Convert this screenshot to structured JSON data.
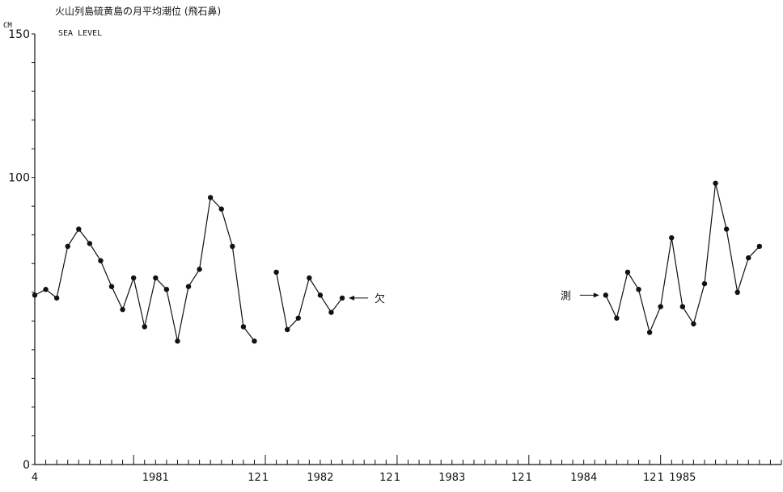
{
  "chart_data": {
    "type": "line",
    "title": "火山列島硫黄島の月平均潮位 (飛石鼻)",
    "subtitle": "SEA LEVEL",
    "ylabel": "CM",
    "ylim": [
      0,
      150
    ],
    "yticks": [
      0,
      100,
      150
    ],
    "xlabel": "",
    "x_range": [
      "1980-04",
      "1985-12"
    ],
    "x_tick_labels": [
      {
        "month": "1980-04",
        "label": "4"
      },
      {
        "month": "1981-03",
        "label": "1981"
      },
      {
        "month": "1981-12",
        "label": "12"
      },
      {
        "month": "1982-01",
        "label": "1"
      },
      {
        "month": "1982-06",
        "label": "1982"
      },
      {
        "month": "1982-12",
        "label": "12"
      },
      {
        "month": "1983-01",
        "label": "1"
      },
      {
        "month": "1983-06",
        "label": "1983"
      },
      {
        "month": "1983-12",
        "label": "12"
      },
      {
        "month": "1984-01",
        "label": "1"
      },
      {
        "month": "1984-06",
        "label": "1984"
      },
      {
        "month": "1984-12",
        "label": "12"
      },
      {
        "month": "1985-01",
        "label": "1"
      },
      {
        "month": "1985-03",
        "label": "1985"
      }
    ],
    "grid": false,
    "series": [
      {
        "name": "",
        "points": [
          [
            "1980-04",
            59
          ],
          [
            "1980-05",
            61
          ],
          [
            "1980-06",
            58
          ],
          [
            "1980-07",
            76
          ],
          [
            "1980-08",
            82
          ],
          [
            "1980-09",
            77
          ],
          [
            "1980-10",
            71
          ],
          [
            "1980-11",
            62
          ],
          [
            "1980-12",
            54
          ],
          [
            "1981-01",
            65
          ],
          [
            "1981-02",
            48
          ],
          [
            "1981-03",
            65
          ],
          [
            "1981-04",
            61
          ],
          [
            "1981-05",
            43
          ],
          [
            "1981-06",
            62
          ],
          [
            "1981-07",
            68
          ],
          [
            "1981-08",
            93
          ],
          [
            "1981-09",
            89
          ],
          [
            "1981-10",
            76
          ],
          [
            "1981-11",
            48
          ],
          [
            "1981-12",
            43
          ],
          [
            "1982-01",
            null
          ],
          [
            "1982-02",
            67
          ],
          [
            "1982-03",
            47
          ],
          [
            "1982-04",
            51
          ],
          [
            "1982-05",
            65
          ],
          [
            "1982-06",
            59
          ],
          [
            "1982-07",
            53
          ],
          [
            "1982-08",
            58
          ],
          [
            "1982-09",
            null
          ],
          [
            "1982-10",
            null
          ],
          [
            "1982-11",
            null
          ],
          [
            "1982-12",
            null
          ],
          [
            "1983-01",
            null
          ],
          [
            "1983-02",
            null
          ],
          [
            "1983-03",
            null
          ],
          [
            "1983-04",
            null
          ],
          [
            "1983-05",
            null
          ],
          [
            "1983-06",
            null
          ],
          [
            "1983-07",
            null
          ],
          [
            "1983-08",
            null
          ],
          [
            "1983-09",
            null
          ],
          [
            "1983-10",
            null
          ],
          [
            "1983-11",
            null
          ],
          [
            "1983-12",
            null
          ],
          [
            "1984-01",
            null
          ],
          [
            "1984-02",
            null
          ],
          [
            "1984-03",
            null
          ],
          [
            "1984-04",
            null
          ],
          [
            "1984-05",
            null
          ],
          [
            "1984-06",
            null
          ],
          [
            "1984-07",
            null
          ],
          [
            "1984-08",
            59
          ],
          [
            "1984-09",
            51
          ],
          [
            "1984-10",
            67
          ],
          [
            "1984-11",
            61
          ],
          [
            "1984-12",
            46
          ],
          [
            "1985-01",
            55
          ],
          [
            "1985-02",
            79
          ],
          [
            "1985-03",
            55
          ],
          [
            "1985-04",
            49
          ],
          [
            "1985-05",
            63
          ],
          [
            "1985-06",
            98
          ],
          [
            "1985-07",
            82
          ],
          [
            "1985-08",
            60
          ],
          [
            "1985-09",
            72
          ],
          [
            "1985-10",
            76
          ]
        ]
      }
    ],
    "annotations": [
      {
        "text": "欠",
        "at": [
          "1982-08",
          58
        ],
        "arrow": "points-left"
      },
      {
        "text": "測",
        "at": [
          "1984-08",
          59
        ],
        "arrow": "points-right"
      }
    ]
  }
}
